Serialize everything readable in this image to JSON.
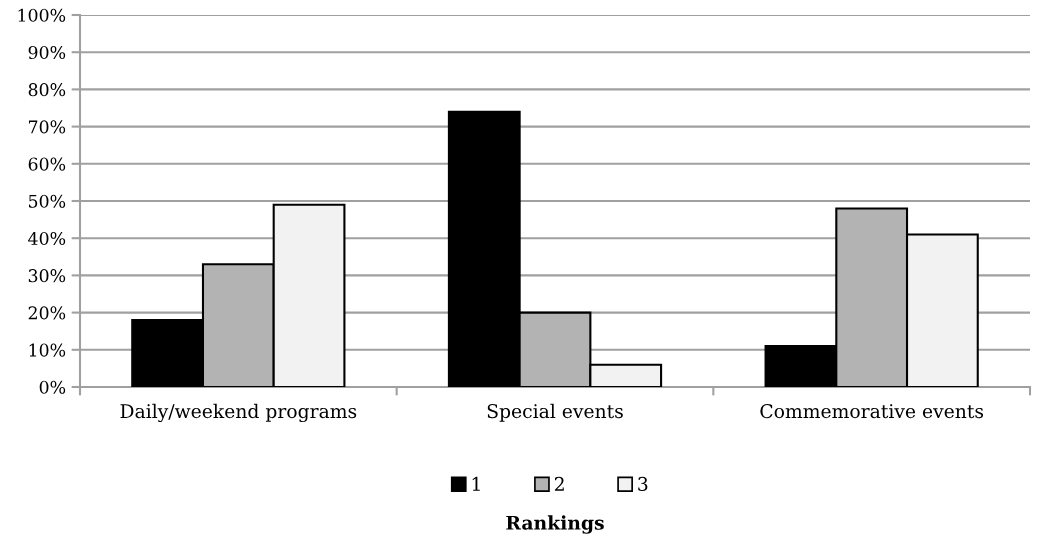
{
  "chart_data": {
    "type": "bar",
    "categories": [
      "Daily/weekend programs",
      "Special events",
      "Commemorative events"
    ],
    "series": [
      {
        "name": "1",
        "color": "#000000",
        "values": [
          18,
          74,
          11
        ]
      },
      {
        "name": "2",
        "color": "#b3b3b3",
        "values": [
          33,
          20,
          48
        ]
      },
      {
        "name": "3",
        "color": "#f2f2f2",
        "values": [
          49,
          6,
          41
        ]
      }
    ],
    "xlabel": "Rankings",
    "ylim": [
      0,
      100
    ],
    "yticks": [
      {
        "value": 0,
        "label": "0%"
      },
      {
        "value": 10,
        "label": "10%"
      },
      {
        "value": 20,
        "label": "20%"
      },
      {
        "value": 30,
        "label": "30%"
      },
      {
        "value": 40,
        "label": "40%"
      },
      {
        "value": 50,
        "label": "50%"
      },
      {
        "value": 60,
        "label": "60%"
      },
      {
        "value": 70,
        "label": "70%"
      },
      {
        "value": 80,
        "label": "80%"
      },
      {
        "value": 90,
        "label": "90%"
      },
      {
        "value": 100,
        "label": "100%"
      }
    ],
    "grid": "y",
    "legend": "bottom"
  }
}
